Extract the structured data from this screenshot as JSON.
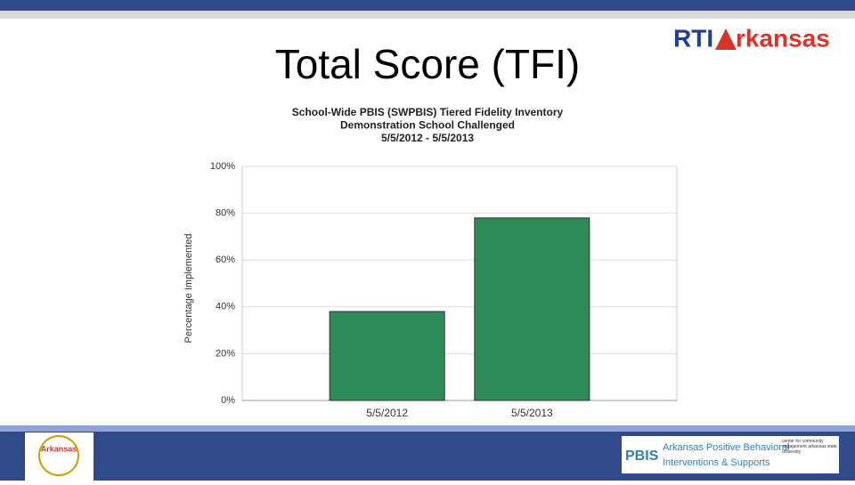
{
  "slide_title": "Total Score (TFI)",
  "logo_top": {
    "left": "RTI",
    "right": "rkansas"
  },
  "logo_bottom_left": "Arkansas",
  "logo_bottom_right": {
    "mark": "PBIS",
    "line1": "Arkansas Positive Behavioral",
    "line2": "Interventions & Supports",
    "partner": "center for community engagement arkansas state university"
  },
  "chart_data": {
    "type": "bar",
    "title": [
      "School-Wide PBIS (SWPBIS) Tiered Fidelity Inventory",
      "Demonstration School Challenged",
      "5/5/2012 - 5/5/2013"
    ],
    "y_label": "Percentage Implemented",
    "categories": [
      "5/5/2012",
      "5/5/2013"
    ],
    "values": [
      38,
      78
    ],
    "color": "#2e8b57",
    "ylim": [
      0,
      100
    ],
    "yticks": [
      {
        "value": 0,
        "label": "0%"
      },
      {
        "value": 20,
        "label": "20%"
      },
      {
        "value": 40,
        "label": "40%"
      },
      {
        "value": 60,
        "label": "60%"
      },
      {
        "value": 80,
        "label": "80%"
      },
      {
        "value": 100,
        "label": "100%"
      }
    ],
    "grid": true
  }
}
